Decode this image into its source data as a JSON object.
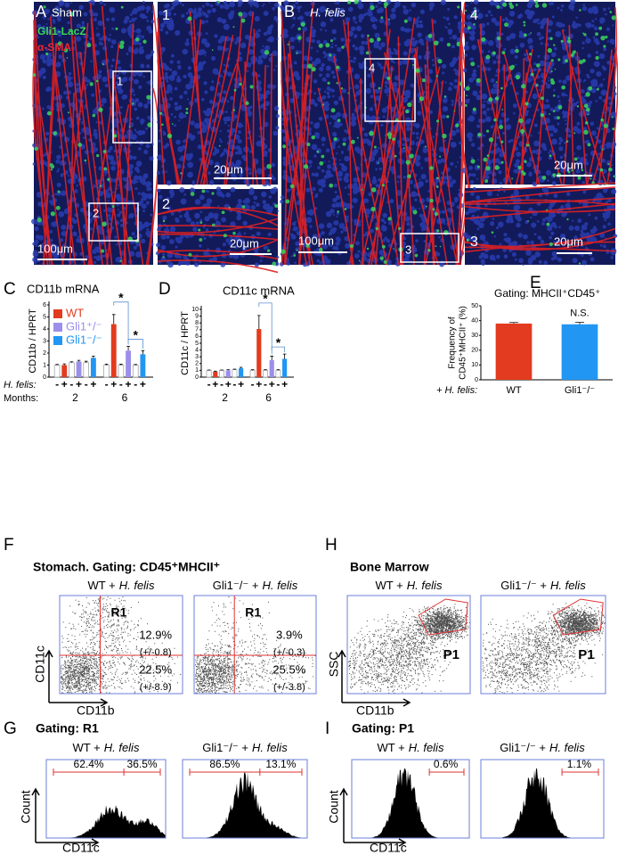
{
  "figure": {
    "panel_a": {
      "letter": "A",
      "label": "Sham",
      "legend": [
        "Gli1-LacZ",
        "α-SMA"
      ],
      "scale": "100μm",
      "boxes": [
        "1",
        "2"
      ]
    },
    "inset_1": {
      "number": "1",
      "scale": "20μm"
    },
    "inset_2": {
      "number": "2",
      "scale": "20μm"
    },
    "panel_b": {
      "letter": "B",
      "label": "H. felis",
      "scale": "100μm",
      "boxes": [
        "4",
        "3"
      ]
    },
    "inset_4": {
      "number": "4",
      "scale": "20μm"
    },
    "inset_3": {
      "number": "3",
      "scale": "20μm"
    },
    "panel_f": {
      "letter": "F",
      "title": "Stomach. Gating: CD45⁺MHCII⁺",
      "ylabel": "CD11c",
      "xlabel": "CD11b",
      "plots": [
        {
          "label": "WT +",
          "label_italic": "H. felis",
          "gate": "R1",
          "upper": "12.9%",
          "upper_sd": "(+/-0.8)",
          "lower": "22.5%",
          "lower_sd": "(+/-8.9)"
        },
        {
          "label": "Gli1⁻/⁻ +",
          "label_italic": "H. felis",
          "gate": "R1",
          "upper": "3.9%",
          "upper_sd": "(+/-0.3)",
          "lower": "25.5%",
          "lower_sd": "(+/-3.8)"
        }
      ]
    },
    "panel_h": {
      "letter": "H",
      "title": "Bone Marrow",
      "ylabel": "SSC",
      "xlabel": "CD11b",
      "plots": [
        {
          "label": "WT +",
          "label_italic": "H. felis",
          "gate": "P1"
        },
        {
          "label": "Gli1⁻/⁻ +",
          "label_italic": "H. felis",
          "gate": "P1"
        }
      ]
    },
    "panel_g": {
      "letter": "G",
      "title": "Gating: R1",
      "ylabel": "Count",
      "xlabel": "CD11c",
      "plots": [
        {
          "label": "WT +",
          "label_italic": "H. felis",
          "left": "62.4%",
          "right": "36.5%"
        },
        {
          "label": "Gli1⁻/⁻ +",
          "label_italic": "H. felis",
          "left": "86.5%",
          "right": "13.1%"
        }
      ]
    },
    "panel_i": {
      "letter": "I",
      "title": "Gating: P1",
      "ylabel": "Count",
      "xlabel": "CD11c",
      "plots": [
        {
          "label": "WT +",
          "label_italic": "H. felis",
          "gate_value": "0.6%"
        },
        {
          "label": "Gli1⁻/⁻ +",
          "label_italic": "H. felis",
          "gate_value": "1.1%"
        }
      ]
    }
  },
  "chart_data": [
    {
      "type": "grouped_bar",
      "panel": "C",
      "title": "CD11b mRNA",
      "ylabel": "CD11b / HPRT",
      "ylim": [
        0,
        6
      ],
      "yticks": [
        0,
        1,
        2,
        3,
        4,
        5,
        6
      ],
      "legend": true,
      "hfelis_label": "H. felis:",
      "months_label": "Months:",
      "hfelis_marks": [
        "-",
        "+",
        "-",
        "+",
        "-",
        "+",
        "-",
        "+",
        "-",
        "+",
        "-",
        "+"
      ],
      "groups": [
        "2",
        "6"
      ],
      "control_color": "#ffffff",
      "series": [
        {
          "name": "WT",
          "color": "#e23b1f",
          "control_values": [
            1.0,
            1.0
          ],
          "control_errors": [
            0.05,
            0.08
          ],
          "values": [
            1.0,
            4.4
          ],
          "errors": [
            0.1,
            0.8
          ]
        },
        {
          "name": "Gli1⁺/⁻",
          "color": "#9b8fea",
          "control_values": [
            1.2,
            1.0
          ],
          "control_errors": [
            0.08,
            0.08
          ],
          "values": [
            1.3,
            2.2
          ],
          "errors": [
            0.1,
            0.35
          ]
        },
        {
          "name": "Gli1⁻/⁻",
          "color": "#2196f3",
          "control_values": [
            1.2,
            1.0
          ],
          "control_errors": [
            0.12,
            0.05
          ],
          "values": [
            1.6,
            1.9
          ],
          "errors": [
            0.15,
            0.3
          ]
        }
      ],
      "annotations": [
        "*",
        "*"
      ]
    },
    {
      "type": "grouped_bar",
      "panel": "D",
      "title": "CD11c mRNA",
      "ylabel": "CD11c / HPRT",
      "ylim": [
        0,
        10
      ],
      "yticks": [
        0,
        1,
        2,
        3,
        4,
        5,
        6,
        7,
        8,
        9,
        10
      ],
      "legend": false,
      "hfelis_marks": [
        "-",
        "+",
        "-",
        "+",
        "-",
        "+",
        "-",
        "+",
        "-",
        "+",
        "-",
        "+"
      ],
      "groups": [
        "2",
        "6"
      ],
      "control_color": "#ffffff",
      "series": [
        {
          "color": "#e23b1f",
          "control_values": [
            1.0,
            1.0
          ],
          "control_errors": [
            0.05,
            0.1
          ],
          "values": [
            0.8,
            7.1
          ],
          "errors": [
            0.08,
            2.0
          ]
        },
        {
          "color": "#9b8fea",
          "control_values": [
            1.0,
            1.0
          ],
          "control_errors": [
            0.05,
            0.1
          ],
          "values": [
            1.0,
            2.5
          ],
          "errors": [
            0.1,
            0.6
          ]
        },
        {
          "color": "#2196f3",
          "control_values": [
            1.1,
            1.0
          ],
          "control_errors": [
            0.08,
            0.1
          ],
          "values": [
            1.3,
            2.7
          ],
          "errors": [
            0.15,
            0.7
          ]
        }
      ],
      "annotations": [
        "*",
        "*"
      ]
    },
    {
      "type": "bar",
      "panel": "E",
      "title": "Gating: MHCII⁺CD45⁺",
      "ylabel": [
        "Frequency of",
        "CD45⁺MHCII⁺ (%)"
      ],
      "xlabel": "+ H. felis:",
      "categories": [
        "WT",
        "Gli1⁻/⁻"
      ],
      "values": [
        38,
        37.5
      ],
      "errors": [
        0.7,
        1.3
      ],
      "colors": [
        "#e23b1f",
        "#2196f3"
      ],
      "ylim": [
        0,
        50
      ],
      "yticks": [
        0,
        10,
        20,
        30,
        40,
        50
      ],
      "annotations": [
        "N.S."
      ]
    }
  ]
}
